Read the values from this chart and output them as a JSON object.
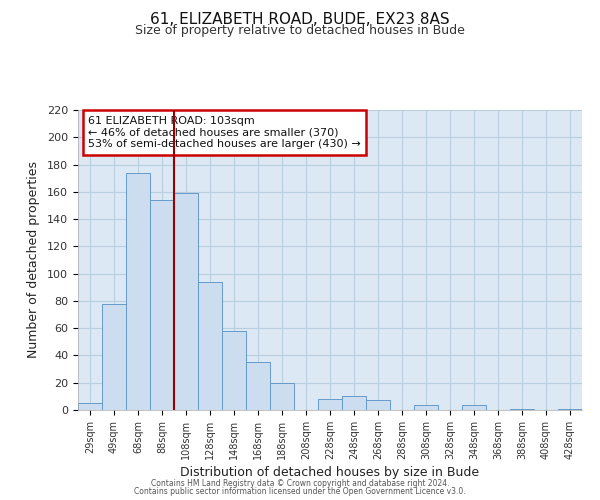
{
  "title": "61, ELIZABETH ROAD, BUDE, EX23 8AS",
  "subtitle": "Size of property relative to detached houses in Bude",
  "xlabel": "Distribution of detached houses by size in Bude",
  "ylabel": "Number of detached properties",
  "bar_labels": [
    "29sqm",
    "49sqm",
    "68sqm",
    "88sqm",
    "108sqm",
    "128sqm",
    "148sqm",
    "168sqm",
    "188sqm",
    "208sqm",
    "228sqm",
    "248sqm",
    "268sqm",
    "288sqm",
    "308sqm",
    "328sqm",
    "348sqm",
    "368sqm",
    "388sqm",
    "408sqm",
    "428sqm"
  ],
  "bar_values": [
    5,
    78,
    174,
    154,
    159,
    94,
    58,
    35,
    20,
    0,
    8,
    10,
    7,
    0,
    4,
    0,
    4,
    0,
    1,
    0,
    1
  ],
  "bar_color": "#ccddf0",
  "bar_edge_color": "#6699cc",
  "grid_color": "#b8cfe0",
  "background_color": "#dce8f4",
  "vline_index": 4,
  "vline_color": "#990000",
  "annotation_text": "61 ELIZABETH ROAD: 103sqm\n← 46% of detached houses are smaller (370)\n53% of semi-detached houses are larger (430) →",
  "annotation_box_facecolor": "#ffffff",
  "annotation_box_edgecolor": "#cc0000",
  "ylim": [
    0,
    220
  ],
  "yticks": [
    0,
    20,
    40,
    60,
    80,
    100,
    120,
    140,
    160,
    180,
    200,
    220
  ],
  "footer_line1": "Contains HM Land Registry data © Crown copyright and database right 2024.",
  "footer_line2": "Contains public sector information licensed under the Open Government Licence v3.0."
}
